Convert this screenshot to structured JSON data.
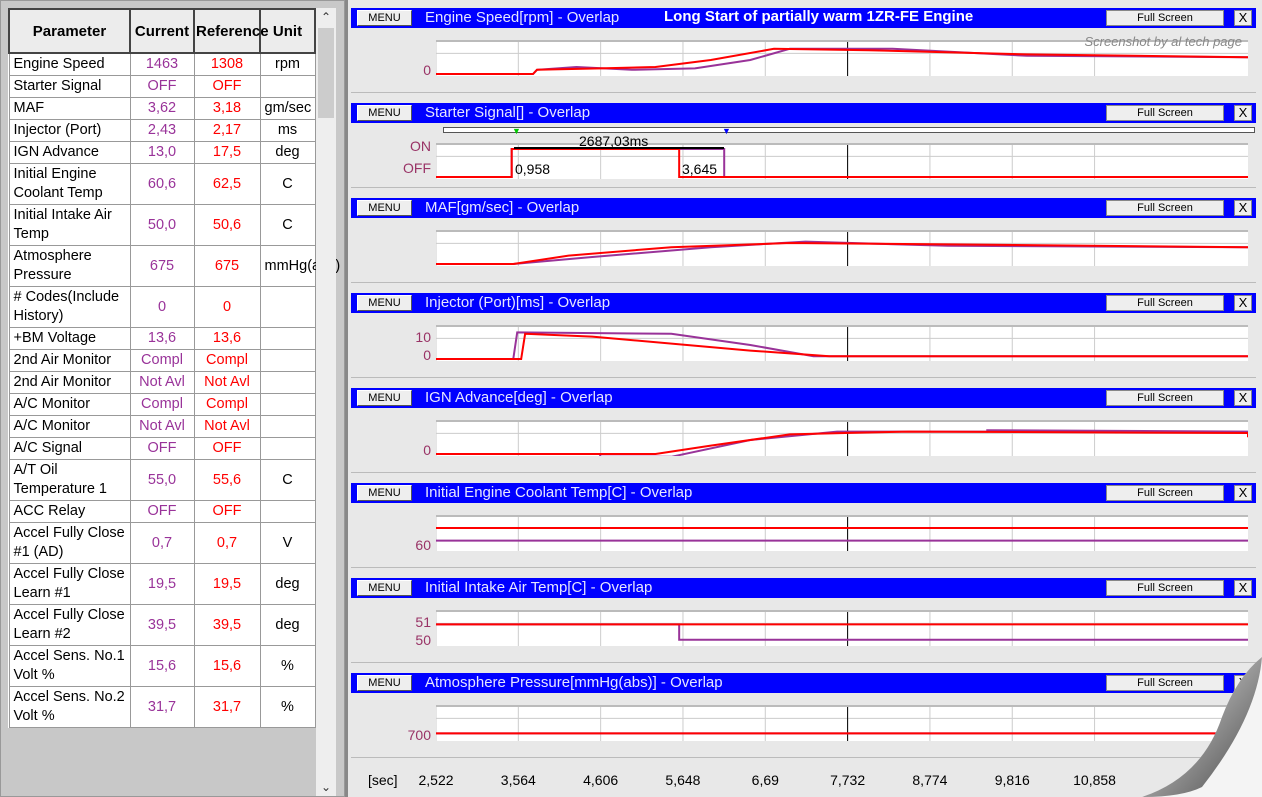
{
  "table": {
    "headers": [
      "Parameter",
      "Current",
      "Reference",
      "Unit"
    ],
    "rows": [
      [
        "Engine Speed",
        "1463",
        "1308",
        "rpm"
      ],
      [
        "Starter Signal",
        "OFF",
        "OFF",
        ""
      ],
      [
        "MAF",
        "3,62",
        "3,18",
        "gm/sec"
      ],
      [
        "Injector (Port)",
        "2,43",
        "2,17",
        "ms"
      ],
      [
        "IGN Advance",
        "13,0",
        "17,5",
        "deg"
      ],
      [
        "Initial Engine Coolant Temp",
        "60,6",
        "62,5",
        "C"
      ],
      [
        "Initial Intake Air Temp",
        "50,0",
        "50,6",
        "C"
      ],
      [
        "Atmosphere Pressure",
        "675",
        "675",
        "mmHg(abs)"
      ],
      [
        "# Codes(Include History)",
        "0",
        "0",
        ""
      ],
      [
        "+BM Voltage",
        "13,6",
        "13,6",
        ""
      ],
      [
        "2nd Air Monitor",
        "Compl",
        "Compl",
        ""
      ],
      [
        "2nd Air Monitor",
        "Not Avl",
        "Not Avl",
        ""
      ],
      [
        "A/C Monitor",
        "Compl",
        "Compl",
        ""
      ],
      [
        "A/C Monitor",
        "Not Avl",
        "Not Avl",
        ""
      ],
      [
        "A/C Signal",
        "OFF",
        "OFF",
        ""
      ],
      [
        "A/T Oil Temperature 1",
        "55,0",
        "55,6",
        "C"
      ],
      [
        "ACC Relay",
        "OFF",
        "OFF",
        ""
      ],
      [
        "Accel Fully Close #1 (AD)",
        "0,7",
        "0,7",
        "V"
      ],
      [
        "Accel Fully Close Learn #1",
        "19,5",
        "19,5",
        "deg"
      ],
      [
        "Accel Fully Close Learn #2",
        "39,5",
        "39,5",
        "deg"
      ],
      [
        "Accel Sens. No.1 Volt %",
        "15,6",
        "15,6",
        "%"
      ],
      [
        "Accel Sens. No.2 Volt %",
        "31,7",
        "31,7",
        "%"
      ]
    ]
  },
  "header": {
    "title": "Long Start of partially warm 1ZR-FE Engine",
    "credit": "Screenshot by al tech page"
  },
  "buttons": {
    "menu": "MENU",
    "full_screen": "Full Screen",
    "close": "X"
  },
  "colors": {
    "current": "#993399",
    "reference": "#ff0000",
    "header_bar": "#0000ff"
  },
  "chart_data": {
    "type": "line",
    "xlabel": "[sec]",
    "x_ticks": [
      "2,522",
      "3,564",
      "4,606",
      "5,648",
      "6,69",
      "7,732",
      "8,774",
      "9,816",
      "10,858"
    ],
    "xlim": [
      2.522,
      12.8
    ],
    "cursor_x": 7.732,
    "measurement": {
      "label": "2687,03ms",
      "start": "0,958",
      "end": "3,645"
    },
    "panels": [
      {
        "title": "Engine Speed[rpm] - Overlap",
        "y_labels": [
          "0"
        ],
        "reference": [
          [
            2.5,
            0
          ],
          [
            3.75,
            0
          ],
          [
            3.8,
            0.15
          ],
          [
            4.6,
            0.2
          ],
          [
            5.3,
            0.25
          ],
          [
            6.0,
            0.5
          ],
          [
            6.8,
            0.9
          ],
          [
            8,
            0.85
          ],
          [
            10,
            0.7
          ],
          [
            12.8,
            0.6
          ]
        ],
        "current": [
          [
            2.5,
            0
          ],
          [
            3.75,
            0
          ],
          [
            3.8,
            0.15
          ],
          [
            4.3,
            0.25
          ],
          [
            5.0,
            0.15
          ],
          [
            5.8,
            0.2
          ],
          [
            6.5,
            0.5
          ],
          [
            7,
            0.9
          ],
          [
            8.3,
            0.9
          ],
          [
            10,
            0.65
          ],
          [
            12.8,
            0.6
          ]
        ]
      },
      {
        "title": "Starter Signal[] - Overlap",
        "y_labels": [
          "ON",
          "OFF"
        ],
        "reference": [
          [
            2.5,
            0
          ],
          [
            3.48,
            0
          ],
          [
            3.48,
            1
          ],
          [
            5.6,
            1
          ],
          [
            5.6,
            0
          ],
          [
            12.8,
            0
          ]
        ],
        "current": [
          [
            2.5,
            0
          ],
          [
            3.48,
            0
          ],
          [
            3.48,
            1
          ],
          [
            6.17,
            1
          ],
          [
            6.17,
            0
          ],
          [
            12.8,
            0
          ]
        ]
      },
      {
        "title": "MAF[gm/sec] - Overlap",
        "y_labels": [],
        "reference": [
          [
            2.5,
            0
          ],
          [
            3.5,
            0
          ],
          [
            4.2,
            0.3
          ],
          [
            5.5,
            0.6
          ],
          [
            7,
            0.75
          ],
          [
            9,
            0.7
          ],
          [
            12.8,
            0.6
          ]
        ],
        "current": [
          [
            2.5,
            0
          ],
          [
            3.5,
            0
          ],
          [
            4.5,
            0.25
          ],
          [
            6,
            0.6
          ],
          [
            7.2,
            0.8
          ],
          [
            9,
            0.65
          ],
          [
            12.8,
            0.6
          ]
        ]
      },
      {
        "title": "Injector (Port)[ms] - Overlap",
        "y_labels": [
          "10",
          "0"
        ],
        "reference": [
          [
            2.5,
            0
          ],
          [
            3.6,
            0
          ],
          [
            3.65,
            0.9
          ],
          [
            4.5,
            0.8
          ],
          [
            6.5,
            0.3
          ],
          [
            7.5,
            0.1
          ],
          [
            12.8,
            0.1
          ]
        ],
        "current": [
          [
            2.5,
            0
          ],
          [
            3.5,
            0
          ],
          [
            3.55,
            0.95
          ],
          [
            5.5,
            0.9
          ],
          [
            6.5,
            0.5
          ],
          [
            7.3,
            0.1
          ],
          [
            12.8,
            0.1
          ]
        ]
      },
      {
        "title": "IGN Advance[deg] - Overlap",
        "y_labels": [
          "0"
        ],
        "reference": [
          [
            2.5,
            0
          ],
          [
            5.3,
            0
          ],
          [
            6.0,
            0.3
          ],
          [
            7.0,
            0.7
          ],
          [
            7.7,
            0.75
          ],
          [
            8.5,
            0.8
          ],
          [
            12.8,
            0.75
          ],
          [
            12.8,
            0.6
          ]
        ],
        "current": [
          [
            2.5,
            0
          ],
          [
            4.6,
            0
          ],
          [
            4.6,
            -0.1
          ],
          [
            5.5,
            -0.1
          ],
          [
            6.5,
            0.5
          ],
          [
            7.6,
            0.8
          ],
          [
            9.5,
            0.8
          ],
          [
            9.5,
            0.85
          ],
          [
            12.8,
            0.8
          ]
        ]
      },
      {
        "title": "Initial Engine Coolant Temp[C] - Overlap",
        "y_labels": [
          "60"
        ],
        "reference": [
          [
            2.5,
            0.75
          ],
          [
            12.8,
            0.75
          ]
        ],
        "current": [
          [
            2.5,
            0.3
          ],
          [
            12.8,
            0.3
          ]
        ]
      },
      {
        "title": "Initial Intake Air Temp[C] - Overlap",
        "y_labels": [
          "51",
          "50"
        ],
        "reference": [
          [
            2.5,
            0.7
          ],
          [
            12.8,
            0.7
          ]
        ],
        "current": [
          [
            2.5,
            0.7
          ],
          [
            5.6,
            0.7
          ],
          [
            5.6,
            0.15
          ],
          [
            12.8,
            0.15
          ]
        ]
      },
      {
        "title": "Atmosphere Pressure[mmHg(abs)] - Overlap",
        "y_labels": [
          "700"
        ],
        "reference": [
          [
            2.5,
            0.2
          ],
          [
            12.8,
            0.2
          ]
        ],
        "current": [
          [
            2.5,
            0.2
          ],
          [
            12.8,
            0.2
          ]
        ]
      }
    ]
  }
}
